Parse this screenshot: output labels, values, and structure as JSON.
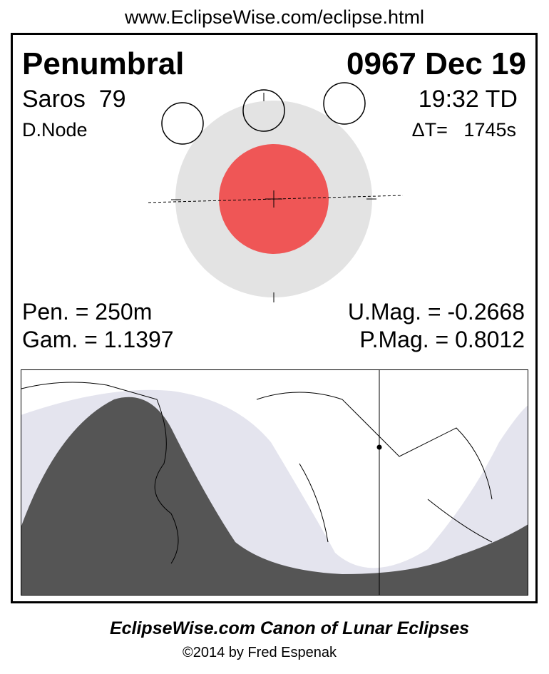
{
  "header": {
    "url": "www.EclipseWise.com/eclipse.html"
  },
  "eclipse": {
    "type": "Penumbral",
    "date": "0967 Dec 19",
    "saros": "Saros  79",
    "time": "19:32 TD",
    "node": "D.Node",
    "delta_t": "ΔT=   1745s"
  },
  "parameters": {
    "pen": "Pen. = 250m",
    "gam": "Gam. = 1.1397",
    "umag": "U.Mag. = -0.2668",
    "pmag": "P.Mag. = 0.8012"
  },
  "footer": {
    "title": "EclipseWise.com Canon of Lunar Eclipses",
    "copyright": "©2014 by Fred Espenak"
  }
}
